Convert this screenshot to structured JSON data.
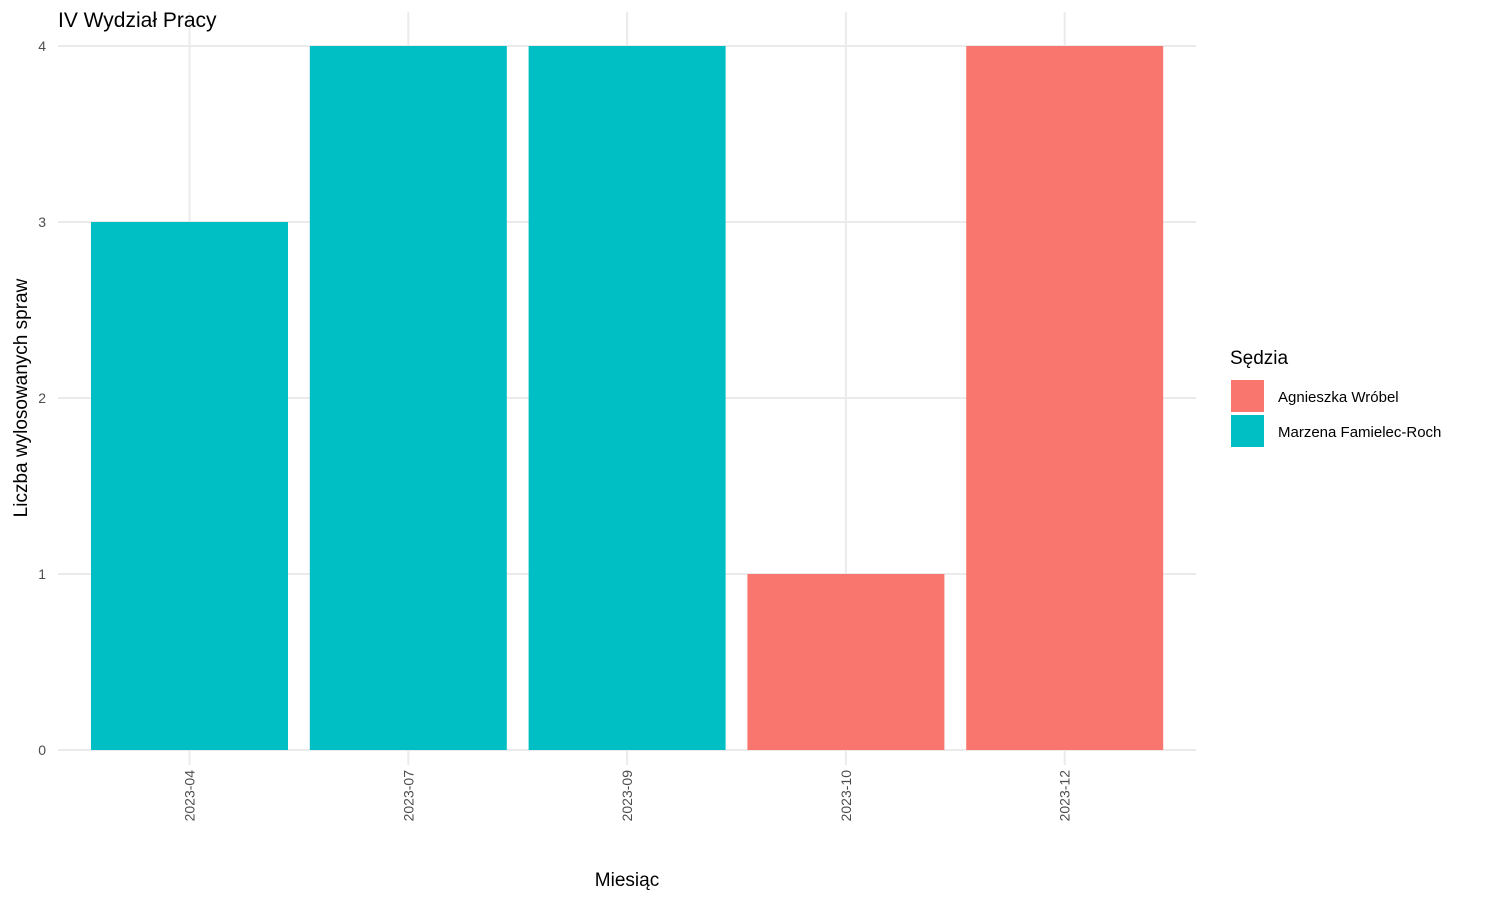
{
  "chart_data": {
    "type": "bar",
    "title": "IV Wydział Pracy",
    "xlabel": "Miesiąc",
    "ylabel": "Liczba wylosowanych spraw",
    "categories": [
      "2023-04",
      "2023-07",
      "2023-09",
      "2023-10",
      "2023-12"
    ],
    "values": [
      3,
      4,
      4,
      1,
      4
    ],
    "fill_by": [
      "Marzena Famielec-Roch",
      "Marzena Famielec-Roch",
      "Marzena Famielec-Roch",
      "Agnieszka Wróbel",
      "Agnieszka Wróbel"
    ],
    "ylim": [
      0,
      4
    ],
    "yticks": [
      "0",
      "1",
      "2",
      "3",
      "4"
    ],
    "grid": true,
    "legend": {
      "title": "Sędzia",
      "placement": "right",
      "entries": [
        {
          "name": "Agnieszka Wróbel",
          "color": "#F8766D"
        },
        {
          "name": "Marzena Famielec-Roch",
          "color": "#00BFC4"
        }
      ]
    }
  }
}
